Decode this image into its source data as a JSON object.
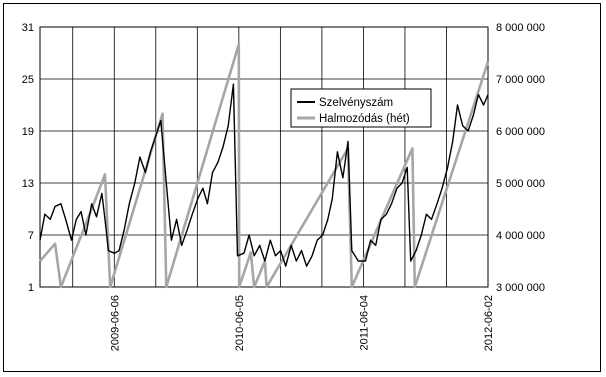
{
  "chart_data": {
    "type": "line",
    "title": "",
    "xlabel": "",
    "ylabel": "",
    "grid": true,
    "legend_position": "right-center",
    "x_ticks": [
      "2009-06-06",
      "2010-06-05",
      "2011-06-04",
      "2012-06-02"
    ],
    "x_range": [
      "2008-11-01",
      "2012-06-02"
    ],
    "y_left": {
      "ticks": [
        "1",
        "7",
        "13",
        "19",
        "25",
        "31"
      ],
      "range": [
        1,
        31
      ]
    },
    "y_right": {
      "ticks": [
        "3 000 000",
        "4 000 000",
        "5 000 000",
        "6 000 000",
        "7 000 000",
        "8 000 000"
      ],
      "range": [
        3000000,
        8000000
      ]
    },
    "series": [
      {
        "name": "Szelvényszám",
        "axis": "right",
        "color": "#000000",
        "points": [
          [
            "2008-11-01",
            3900000
          ],
          [
            "2008-11-15",
            4400000
          ],
          [
            "2008-12-01",
            4300000
          ],
          [
            "2008-12-15",
            4550000
          ],
          [
            "2009-01-01",
            4600000
          ],
          [
            "2009-01-15",
            4300000
          ],
          [
            "2009-02-01",
            3900000
          ],
          [
            "2009-02-15",
            4300000
          ],
          [
            "2009-03-01",
            4450000
          ],
          [
            "2009-03-15",
            4000000
          ],
          [
            "2009-04-01",
            4600000
          ],
          [
            "2009-04-15",
            4350000
          ],
          [
            "2009-05-01",
            4800000
          ],
          [
            "2009-05-10",
            4300000
          ],
          [
            "2009-05-20",
            3700000
          ],
          [
            "2009-06-06",
            3650000
          ],
          [
            "2009-06-20",
            3700000
          ],
          [
            "2009-07-05",
            4100000
          ],
          [
            "2009-07-20",
            4600000
          ],
          [
            "2009-08-05",
            5000000
          ],
          [
            "2009-08-20",
            5500000
          ],
          [
            "2009-09-05",
            5200000
          ],
          [
            "2009-09-20",
            5600000
          ],
          [
            "2009-10-05",
            5900000
          ],
          [
            "2009-10-20",
            6200000
          ],
          [
            "2009-11-05",
            5000000
          ],
          [
            "2009-11-20",
            3900000
          ],
          [
            "2009-12-05",
            4300000
          ],
          [
            "2009-12-20",
            3800000
          ],
          [
            "2010-01-05",
            4100000
          ],
          [
            "2010-01-20",
            4400000
          ],
          [
            "2010-02-05",
            4700000
          ],
          [
            "2010-02-20",
            4900000
          ],
          [
            "2010-03-05",
            4600000
          ],
          [
            "2010-03-20",
            5200000
          ],
          [
            "2010-04-05",
            5400000
          ],
          [
            "2010-04-20",
            5700000
          ],
          [
            "2010-05-05",
            6100000
          ],
          [
            "2010-05-20",
            6900000
          ],
          [
            "2010-06-01",
            3600000
          ],
          [
            "2010-06-20",
            3650000
          ],
          [
            "2010-07-05",
            4000000
          ],
          [
            "2010-07-20",
            3600000
          ],
          [
            "2010-08-05",
            3800000
          ],
          [
            "2010-08-20",
            3500000
          ],
          [
            "2010-09-05",
            3900000
          ],
          [
            "2010-09-20",
            3600000
          ],
          [
            "2010-10-05",
            3700000
          ],
          [
            "2010-10-20",
            3400000
          ],
          [
            "2010-11-05",
            3800000
          ],
          [
            "2010-11-20",
            3500000
          ],
          [
            "2010-12-05",
            3700000
          ],
          [
            "2010-12-20",
            3400000
          ],
          [
            "2011-01-05",
            3600000
          ],
          [
            "2011-01-20",
            3900000
          ],
          [
            "2011-02-05",
            4000000
          ],
          [
            "2011-02-20",
            4300000
          ],
          [
            "2011-03-05",
            4700000
          ],
          [
            "2011-03-20",
            5600000
          ],
          [
            "2011-04-05",
            5100000
          ],
          [
            "2011-04-20",
            5800000
          ],
          [
            "2011-05-01",
            3700000
          ],
          [
            "2011-05-20",
            3500000
          ],
          [
            "2011-06-10",
            3500000
          ],
          [
            "2011-06-25",
            3900000
          ],
          [
            "2011-07-10",
            3800000
          ],
          [
            "2011-07-25",
            4300000
          ],
          [
            "2011-08-10",
            4400000
          ],
          [
            "2011-08-25",
            4600000
          ],
          [
            "2011-09-10",
            4900000
          ],
          [
            "2011-09-25",
            5000000
          ],
          [
            "2011-10-10",
            5300000
          ],
          [
            "2011-10-20",
            3500000
          ],
          [
            "2011-11-05",
            3700000
          ],
          [
            "2011-11-20",
            4000000
          ],
          [
            "2011-12-05",
            4400000
          ],
          [
            "2011-12-20",
            4300000
          ],
          [
            "2012-01-05",
            4600000
          ],
          [
            "2012-01-20",
            4900000
          ],
          [
            "2012-02-05",
            5300000
          ],
          [
            "2012-02-20",
            5800000
          ],
          [
            "2012-03-05",
            6500000
          ],
          [
            "2012-03-20",
            6100000
          ],
          [
            "2012-04-05",
            6000000
          ],
          [
            "2012-04-20",
            6300000
          ],
          [
            "2012-05-05",
            6700000
          ],
          [
            "2012-05-20",
            6500000
          ],
          [
            "2012-06-02",
            6700000
          ]
        ]
      },
      {
        "name": "Halmozódás (hét)",
        "axis": "left",
        "color": "#a6a6a6",
        "points": [
          [
            "2008-11-01",
            4
          ],
          [
            "2008-12-15",
            6
          ],
          [
            "2009-01-01",
            1
          ],
          [
            "2009-04-01",
            10
          ],
          [
            "2009-05-10",
            14
          ],
          [
            "2009-05-25",
            1
          ],
          [
            "2009-10-25",
            21
          ],
          [
            "2009-11-05",
            1
          ],
          [
            "2010-06-05",
            29
          ],
          [
            "2010-06-06",
            1
          ],
          [
            "2010-07-10",
            5
          ],
          [
            "2010-07-20",
            1
          ],
          [
            "2010-08-20",
            4
          ],
          [
            "2010-08-25",
            1
          ],
          [
            "2011-04-20",
            17
          ],
          [
            "2011-05-01",
            1
          ],
          [
            "2011-10-25",
            17
          ],
          [
            "2011-11-01",
            1
          ],
          [
            "2012-06-02",
            27
          ]
        ]
      }
    ]
  }
}
